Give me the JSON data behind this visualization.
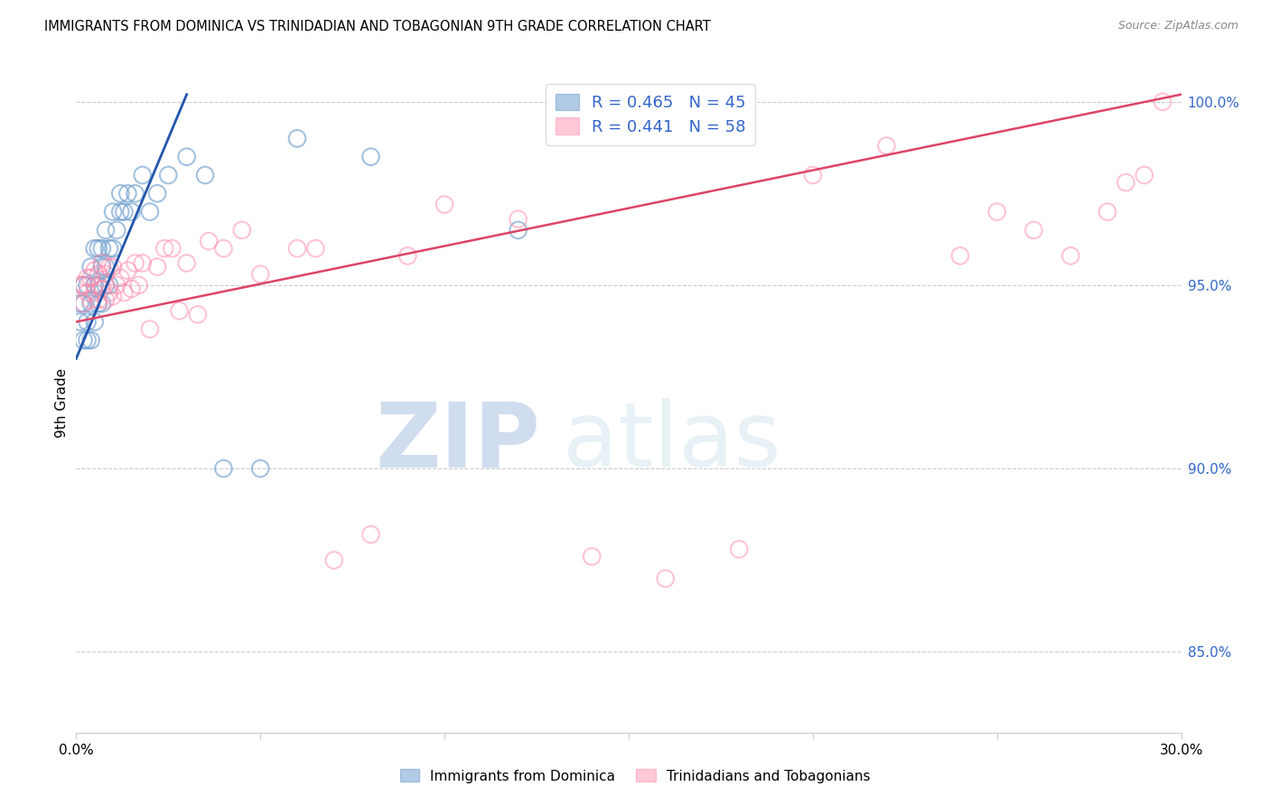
{
  "title": "IMMIGRANTS FROM DOMINICA VS TRINIDADIAN AND TOBAGONIAN 9TH GRADE CORRELATION CHART",
  "source": "Source: ZipAtlas.com",
  "ylabel": "9th Grade",
  "xlim": [
    0.0,
    0.3
  ],
  "ylim": [
    0.828,
    1.008
  ],
  "xticks": [
    0.0,
    0.05,
    0.1,
    0.15,
    0.2,
    0.25,
    0.3
  ],
  "yticks": [
    0.85,
    0.9,
    0.95,
    1.0
  ],
  "ytick_labels": [
    "85.0%",
    "90.0%",
    "95.0%",
    "100.0%"
  ],
  "legend_blue_label": "R = 0.465   N = 45",
  "legend_pink_label": "R = 0.441   N = 58",
  "blue_color": "#6699CC",
  "blue_line_color": "#2255AA",
  "pink_color": "#FF88AA",
  "pink_line_color": "#DD4466",
  "blue_scatter_x": [
    0.001,
    0.001,
    0.002,
    0.002,
    0.002,
    0.003,
    0.003,
    0.003,
    0.004,
    0.004,
    0.004,
    0.005,
    0.005,
    0.005,
    0.006,
    0.006,
    0.006,
    0.007,
    0.007,
    0.007,
    0.008,
    0.008,
    0.008,
    0.009,
    0.009,
    0.01,
    0.01,
    0.011,
    0.012,
    0.012,
    0.013,
    0.014,
    0.015,
    0.016,
    0.018,
    0.02,
    0.022,
    0.025,
    0.03,
    0.035,
    0.04,
    0.05,
    0.06,
    0.08,
    0.12
  ],
  "blue_scatter_y": [
    0.94,
    0.945,
    0.935,
    0.945,
    0.95,
    0.935,
    0.94,
    0.95,
    0.935,
    0.945,
    0.955,
    0.94,
    0.95,
    0.96,
    0.945,
    0.95,
    0.96,
    0.945,
    0.955,
    0.96,
    0.95,
    0.955,
    0.965,
    0.95,
    0.96,
    0.96,
    0.97,
    0.965,
    0.97,
    0.975,
    0.97,
    0.975,
    0.97,
    0.975,
    0.98,
    0.97,
    0.975,
    0.98,
    0.985,
    0.98,
    0.9,
    0.9,
    0.99,
    0.985,
    0.965
  ],
  "pink_scatter_x": [
    0.001,
    0.002,
    0.002,
    0.003,
    0.003,
    0.004,
    0.004,
    0.005,
    0.005,
    0.006,
    0.006,
    0.007,
    0.007,
    0.008,
    0.008,
    0.009,
    0.009,
    0.01,
    0.01,
    0.011,
    0.012,
    0.013,
    0.014,
    0.015,
    0.016,
    0.017,
    0.018,
    0.02,
    0.022,
    0.024,
    0.026,
    0.028,
    0.03,
    0.033,
    0.036,
    0.04,
    0.045,
    0.05,
    0.06,
    0.065,
    0.07,
    0.08,
    0.09,
    0.1,
    0.12,
    0.14,
    0.16,
    0.18,
    0.2,
    0.22,
    0.24,
    0.25,
    0.26,
    0.27,
    0.28,
    0.285,
    0.29,
    0.295
  ],
  "pink_scatter_y": [
    0.95,
    0.945,
    0.95,
    0.948,
    0.952,
    0.946,
    0.952,
    0.948,
    0.954,
    0.946,
    0.953,
    0.949,
    0.956,
    0.946,
    0.953,
    0.948,
    0.955,
    0.947,
    0.955,
    0.95,
    0.952,
    0.948,
    0.954,
    0.949,
    0.956,
    0.95,
    0.956,
    0.938,
    0.955,
    0.96,
    0.96,
    0.943,
    0.956,
    0.942,
    0.962,
    0.96,
    0.965,
    0.953,
    0.96,
    0.96,
    0.875,
    0.882,
    0.958,
    0.972,
    0.968,
    0.876,
    0.87,
    0.878,
    0.98,
    0.988,
    0.958,
    0.97,
    0.965,
    0.958,
    0.97,
    0.978,
    0.98,
    1.0
  ],
  "blue_line_x0": 0.0,
  "blue_line_y0": 0.93,
  "blue_line_x1": 0.03,
  "blue_line_y1": 1.002,
  "pink_line_x0": 0.0,
  "pink_line_y0": 0.94,
  "pink_line_x1": 0.3,
  "pink_line_y1": 1.002,
  "watermark_zip": "ZIP",
  "watermark_atlas": "atlas"
}
